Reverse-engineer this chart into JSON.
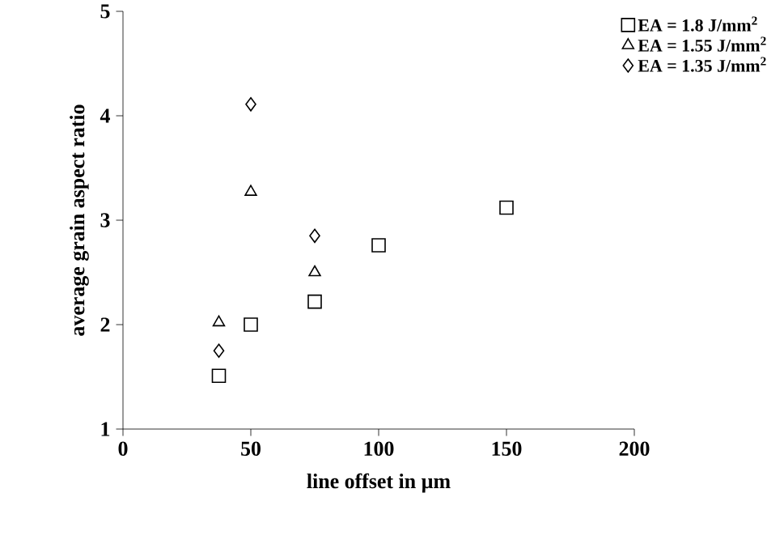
{
  "chart_data": {
    "type": "scatter",
    "xlabel": "line offset in µm",
    "ylabel": "average grain aspect ratio",
    "xlim": [
      0,
      200
    ],
    "ylim": [
      1,
      5
    ],
    "xticks": [
      0,
      50,
      100,
      150,
      200
    ],
    "yticks": [
      1,
      2,
      3,
      4,
      5
    ],
    "grid": false,
    "legend": "top right",
    "series": [
      {
        "name": "EA = 1.8 J/mm$^{2}$",
        "color": "#000000",
        "marker": "square",
        "x": [
          37.5,
          50,
          75,
          100,
          150
        ],
        "values": [
          1.51,
          2.0,
          2.22,
          2.76,
          3.12
        ]
      },
      {
        "name": "EA = 1.55 J/mm$^{2}$",
        "color": "#000000",
        "marker": "triangle",
        "x": [
          37.5,
          50,
          75
        ],
        "values": [
          2.02,
          3.27,
          2.5
        ]
      },
      {
        "name": "EA = 1.35 J/mm$^{2}$",
        "color": "#000000",
        "marker": "diamond",
        "x": [
          37.5,
          50,
          75
        ],
        "values": [
          1.75,
          4.11,
          2.85
        ]
      }
    ]
  }
}
